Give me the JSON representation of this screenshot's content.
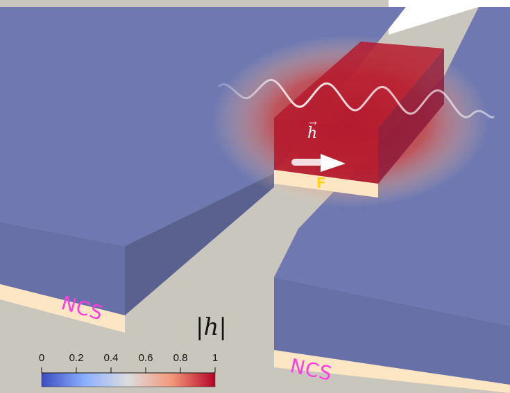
{
  "labels": {
    "ncs_left": "NCS",
    "ncs_right": "NCS",
    "ferromagnet": "F",
    "field_vector": "h"
  },
  "colorbar": {
    "title": "|h|",
    "ticks": [
      "0",
      "0.2",
      "0.4",
      "0.6",
      "0.8",
      "1"
    ],
    "colormap": [
      "#3b4cc0",
      "#8db0fe",
      "#dddddd",
      "#f4987a",
      "#b40426"
    ]
  },
  "colors": {
    "background": "#ffffff",
    "substrate": "#c9c6bd",
    "slab_blue": "#6f78b0",
    "slab_blue_dark": "#5b6399",
    "ncs_strip": "#fde6c4",
    "field_high": "#b51a2e",
    "ncs_text": "#ff3de0",
    "f_text": "#ffd21a"
  }
}
